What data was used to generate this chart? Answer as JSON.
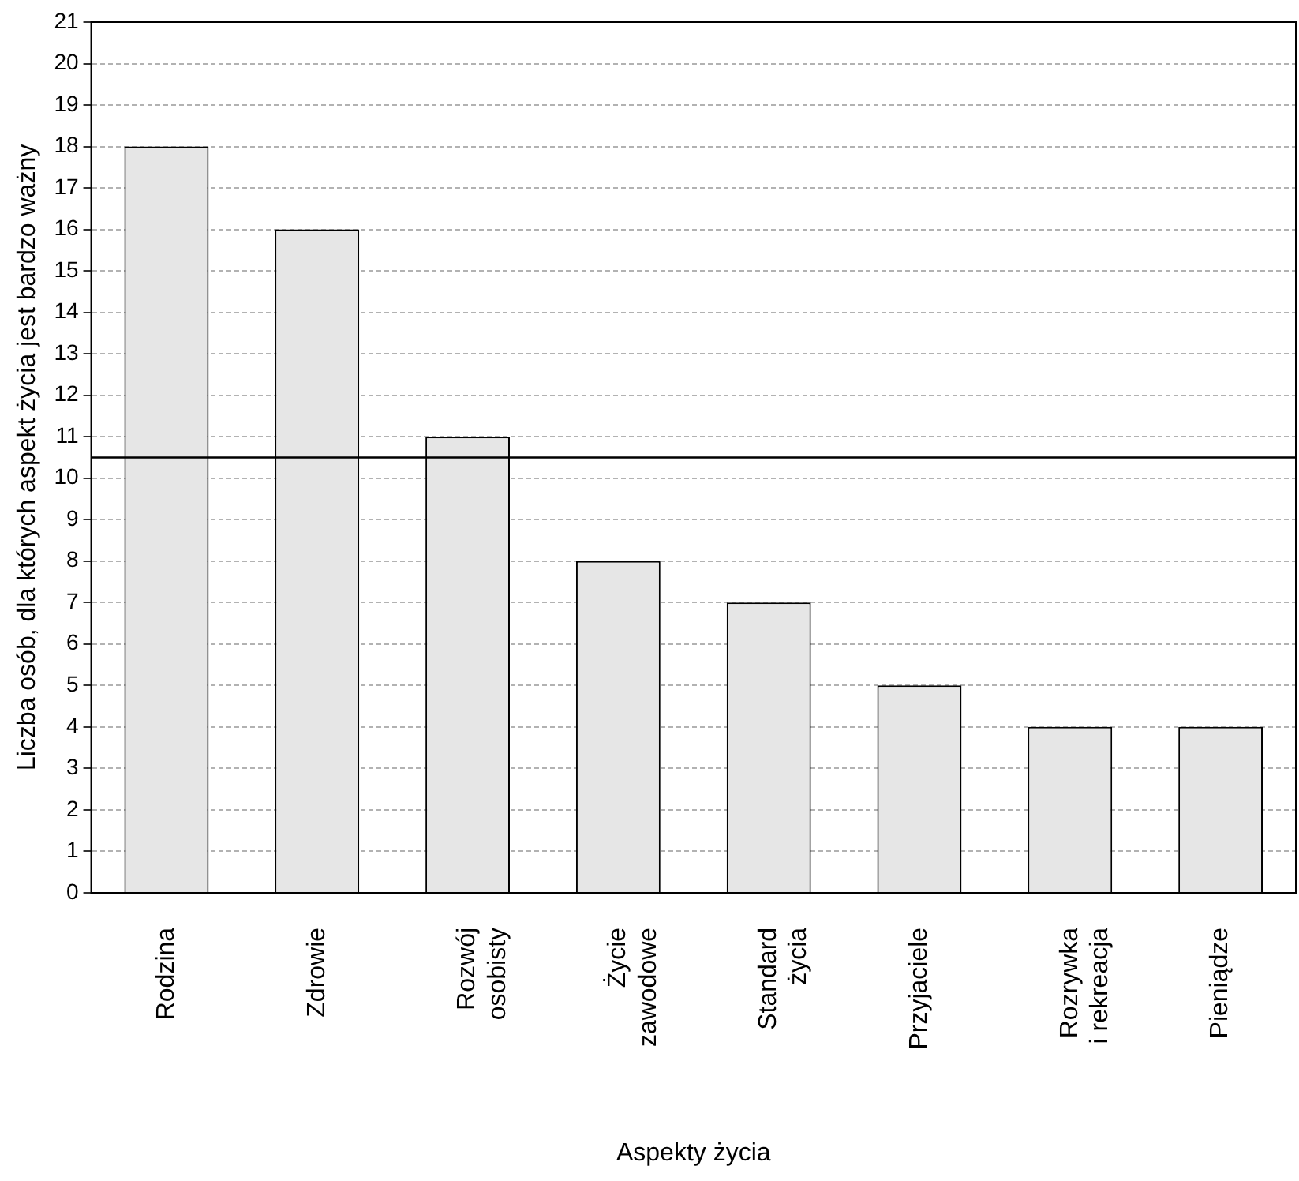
{
  "chart_data": {
    "type": "bar",
    "xlabel": "Aspekty życia",
    "ylabel": "Liczba osób, dla których aspekt życia jest bardzo ważny",
    "categories": [
      "Rodzina",
      "Zdrowie",
      "Rozwój\nosobisty",
      "Życie\nzawodowe",
      "Standard\nżycia",
      "Przyjaciele",
      "Rozrywka\ni rekreacja",
      "Pieniądze"
    ],
    "values": [
      18,
      16,
      11,
      8,
      7,
      5,
      4,
      4
    ],
    "color": "#e6e6e6",
    "ylim": [
      0,
      21
    ],
    "yticks": [
      0,
      1,
      2,
      3,
      4,
      5,
      6,
      7,
      8,
      9,
      10,
      11,
      12,
      13,
      14,
      15,
      16,
      17,
      18,
      19,
      20,
      21
    ],
    "grid": "y",
    "legend": false,
    "ref_lines": [
      {
        "axis": "y",
        "value": 10.5,
        "color": "#000000",
        "line_style": "solid"
      }
    ]
  }
}
